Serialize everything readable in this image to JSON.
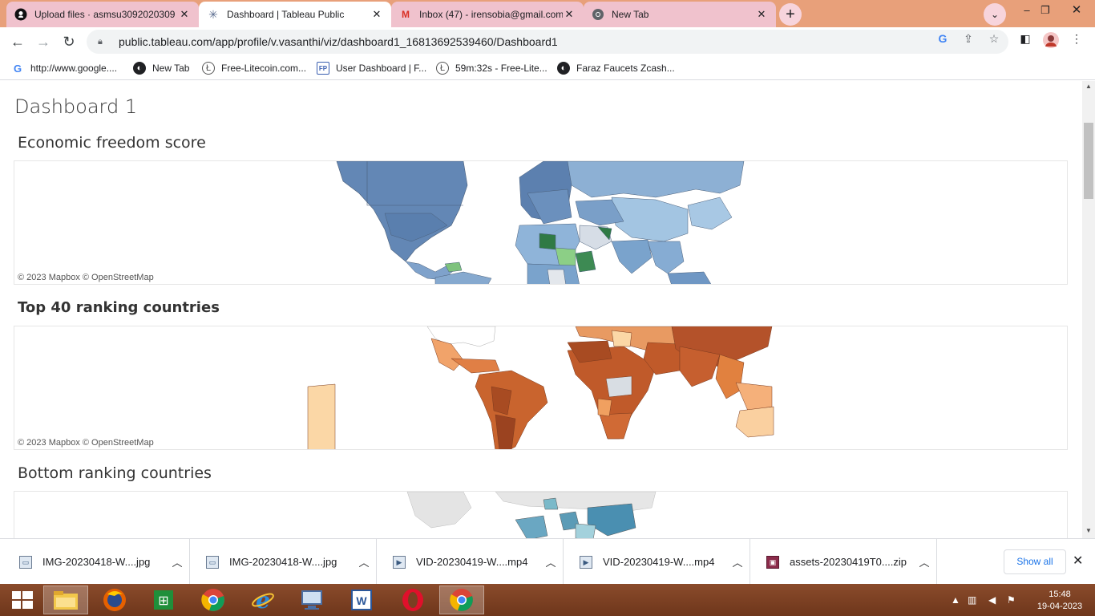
{
  "browser": {
    "tabs": [
      {
        "title": "Upload files · asmsu3092020309",
        "icon": "github-icon",
        "active": false
      },
      {
        "title": "Dashboard | Tableau Public",
        "icon": "tableau-icon",
        "active": true
      },
      {
        "title": "Inbox (47) - irensobia@gmail.com",
        "icon": "gmail-icon",
        "active": false
      },
      {
        "title": "New Tab",
        "icon": "chrome-icon",
        "active": false
      }
    ],
    "url": "public.tableau.com/app/profile/v.vasanthi/viz/dashboard1_16813692539460/Dashboard1",
    "bookmarks": [
      {
        "label": "http://www.google....",
        "icon": "google-icon"
      },
      {
        "label": "New Tab",
        "icon": "globe-icon"
      },
      {
        "label": "Free-Litecoin.com...",
        "icon": "litecoin-icon"
      },
      {
        "label": "User Dashboard | F...",
        "icon": "fp-icon"
      },
      {
        "label": "59m:32s - Free-Lite...",
        "icon": "litecoin-icon"
      },
      {
        "label": "Faraz Faucets Zcash...",
        "icon": "globe-icon"
      }
    ]
  },
  "page": {
    "title": "Dashboard 1",
    "sections": [
      {
        "title": "Economic freedom score",
        "attribution": "© 2023 Mapbox  © OpenStreetMap"
      },
      {
        "title": "Top 40 ranking countries",
        "attribution": "© 2023 Mapbox  © OpenStreetMap"
      },
      {
        "title": "Bottom ranking countries"
      }
    ]
  },
  "downloads": {
    "items": [
      {
        "name": "IMG-20230418-W....jpg",
        "icon": "image-file-icon"
      },
      {
        "name": "IMG-20230418-W....jpg",
        "icon": "image-file-icon"
      },
      {
        "name": "VID-20230419-W....mp4",
        "icon": "video-file-icon"
      },
      {
        "name": "VID-20230419-W....mp4",
        "icon": "video-file-icon"
      },
      {
        "name": "assets-20230419T0....zip",
        "icon": "zip-file-icon"
      }
    ],
    "show_all": "Show all"
  },
  "taskbar": {
    "apps": [
      "windows-start",
      "file-explorer",
      "firefox",
      "excel",
      "chrome",
      "internet-explorer",
      "remote-desktop",
      "word",
      "opera",
      "chrome-active"
    ],
    "time": "15:48",
    "date": "19-04-2023"
  },
  "colors": {
    "titlebar": "#e8a07a",
    "inactive_tab": "#f0c2cd",
    "blue_map": "#6f93bf",
    "orange_map": "#c8602c",
    "taskbar": "#7a3f22"
  }
}
